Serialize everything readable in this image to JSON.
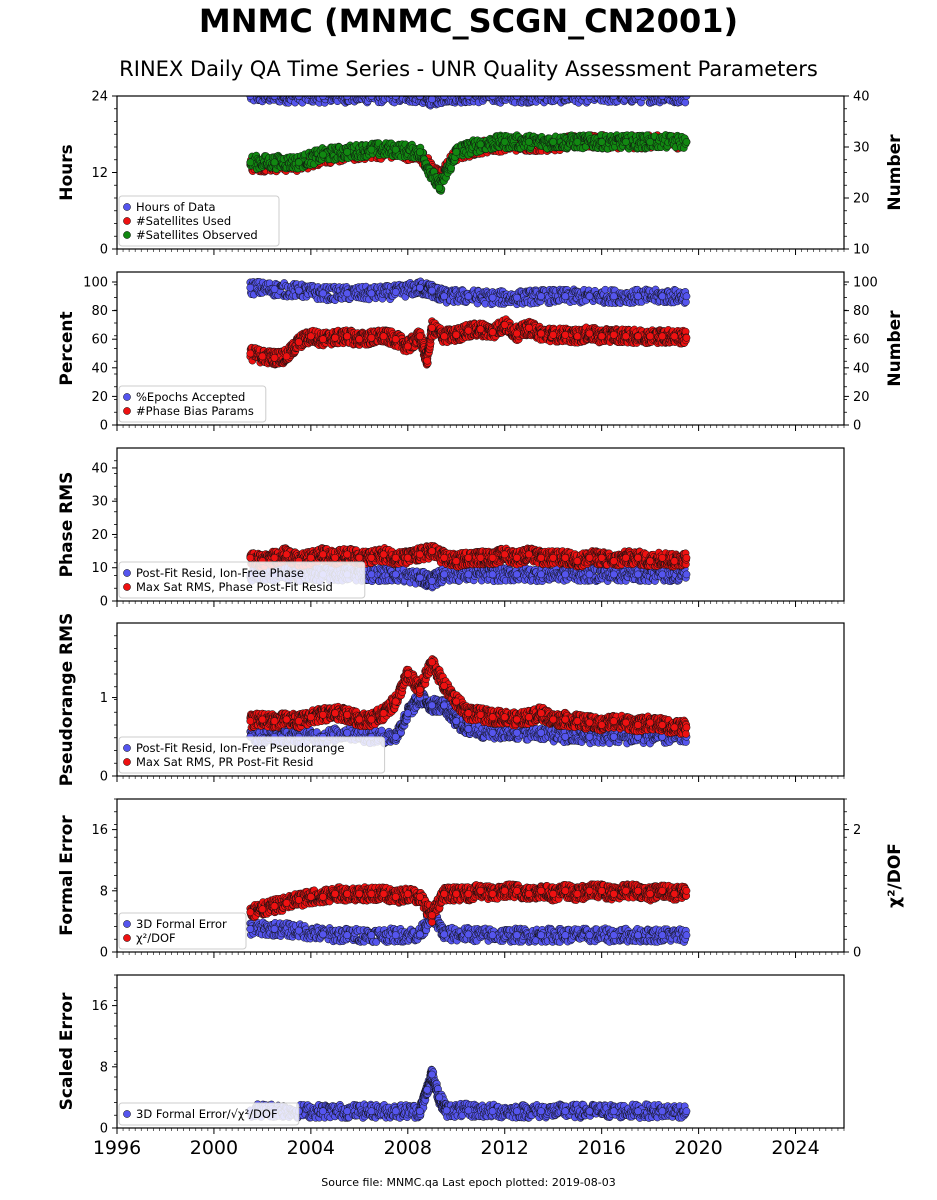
{
  "header": {
    "title": "MNMC (MNMC_SCGN_CN2001)",
    "subtitle": "RINEX Daily QA Time Series - UNR Quality Assessment Parameters"
  },
  "footer": {
    "text": "Source file: MNMC.qa Last epoch plotted: 2019-08-03"
  },
  "colors": {
    "blue": "#5555ee",
    "red": "#ee1111",
    "green": "#118811",
    "edge": "#111111"
  },
  "chart_data": [
    {
      "type": "scatter",
      "ylabel": "Hours",
      "y2label": "Number",
      "ylim": [
        0,
        24
      ],
      "y2lim": [
        10,
        40
      ],
      "yticks": [
        "0",
        "12",
        "24"
      ],
      "y2ticks": [
        "10",
        "20",
        "30",
        "40"
      ],
      "xlim": [
        1996,
        2026
      ],
      "legend": [
        "Hours of Data",
        "#Satellites Used",
        "#Satellites Observed"
      ],
      "legend_loc": "lower-left",
      "series": [
        {
          "name": "Hours of Data",
          "color": "blue",
          "axis": "left",
          "x": [
            2001.5,
            2002.5,
            2003.5,
            2004.5,
            2005.5,
            2006.5,
            2007.5,
            2008.5,
            2009.0,
            2009.5,
            2010.5,
            2011.5,
            2012.5,
            2013.5,
            2014.5,
            2015.5,
            2016.5,
            2017.5,
            2018.5,
            2019.5
          ],
          "y": [
            24,
            24,
            24,
            24,
            24,
            24,
            24,
            24,
            23.5,
            24,
            24,
            24,
            24,
            24,
            24,
            24,
            24,
            24,
            24,
            24
          ]
        },
        {
          "name": "#Satellites Used",
          "color": "red",
          "axis": "right",
          "x": [
            2001.5,
            2002.5,
            2003.5,
            2004.5,
            2005.5,
            2006.5,
            2007.5,
            2008.5,
            2009.3,
            2010.0,
            2011.0,
            2012.0,
            2013.0,
            2014.0,
            2015.0,
            2016.0,
            2017.0,
            2018.0,
            2019.5
          ],
          "y": [
            26.5,
            26.5,
            26.5,
            28.0,
            28.5,
            29.0,
            29.0,
            28.5,
            24.0,
            28.5,
            30.0,
            30.5,
            30.5,
            30.5,
            31.0,
            31.0,
            31.0,
            31.0,
            31.0
          ]
        },
        {
          "name": "#Satellites Observed",
          "color": "green",
          "axis": "right",
          "x": [
            2001.5,
            2002.5,
            2003.5,
            2004.5,
            2005.5,
            2006.5,
            2007.5,
            2008.5,
            2009.3,
            2010.0,
            2011.0,
            2012.0,
            2013.0,
            2014.0,
            2015.0,
            2016.0,
            2017.0,
            2018.0,
            2019.5
          ],
          "y": [
            27.0,
            27.0,
            27.0,
            28.5,
            29.0,
            29.5,
            29.5,
            29.0,
            22.0,
            29.0,
            30.5,
            31.0,
            31.0,
            31.0,
            31.0,
            31.0,
            31.0,
            31.0,
            31.0
          ]
        }
      ]
    },
    {
      "type": "scatter",
      "ylabel": "Percent",
      "y2label": "Number",
      "ylim": [
        0,
        107
      ],
      "y2lim": [
        0,
        107
      ],
      "yticks": [
        "0",
        "20",
        "40",
        "60",
        "80",
        "100"
      ],
      "y2ticks": [
        "0",
        "20",
        "40",
        "60",
        "80",
        "100"
      ],
      "xlim": [
        1996,
        2026
      ],
      "legend": [
        "%Epochs Accepted",
        "#Phase Bias Params"
      ],
      "legend_loc": "lower-left",
      "series": [
        {
          "name": "%Epochs Accepted",
          "color": "blue",
          "axis": "left",
          "x": [
            2001.5,
            2002.5,
            2003.5,
            2004.5,
            2005.5,
            2006.5,
            2007.5,
            2008.5,
            2009.0,
            2009.5,
            2010.5,
            2011.5,
            2012.5,
            2013.5,
            2014.5,
            2015.5,
            2016.5,
            2017.5,
            2018.5,
            2019.5
          ],
          "y": [
            96,
            95,
            94,
            92,
            92,
            92,
            93,
            96,
            94,
            90,
            90,
            89,
            89,
            90,
            90,
            90,
            90,
            90,
            90,
            90
          ]
        },
        {
          "name": "#Phase Bias Params",
          "color": "red",
          "axis": "right",
          "x": [
            2001.5,
            2002.0,
            2002.5,
            2003.0,
            2003.5,
            2004.0,
            2004.5,
            2005.0,
            2005.5,
            2006.0,
            2006.5,
            2007.0,
            2007.5,
            2008.0,
            2008.5,
            2008.8,
            2009.0,
            2009.5,
            2010.0,
            2010.5,
            2011.0,
            2011.5,
            2012.0,
            2012.5,
            2013.0,
            2013.5,
            2014.0,
            2014.5,
            2015.0,
            2015.5,
            2016.0,
            2016.5,
            2017.0,
            2017.5,
            2018.0,
            2018.5,
            2019.0,
            2019.5
          ],
          "y": [
            50,
            48,
            47,
            48,
            58,
            62,
            60,
            61,
            62,
            60,
            61,
            62,
            60,
            55,
            62,
            45,
            68,
            62,
            63,
            66,
            67,
            65,
            70,
            64,
            68,
            64,
            63,
            63,
            62,
            64,
            62,
            63,
            62,
            62,
            62,
            62,
            62,
            61
          ]
        }
      ]
    },
    {
      "type": "scatter",
      "ylabel": "Phase RMS",
      "ylim": [
        0,
        46
      ],
      "yticks": [
        "0",
        "10",
        "20",
        "30",
        "40"
      ],
      "xlim": [
        1996,
        2026
      ],
      "legend": [
        "Post-Fit Resid, Ion-Free Phase",
        "Max Sat RMS, Phase Post-Fit Resid"
      ],
      "legend_loc": "lower-left",
      "series": [
        {
          "name": "Post-Fit Resid, Ion-Free Phase",
          "color": "blue",
          "x": [
            2001.5,
            2002.5,
            2003.5,
            2004.5,
            2005.5,
            2006.5,
            2007.5,
            2008.5,
            2009.0,
            2009.5,
            2010.5,
            2011.5,
            2012.5,
            2013.5,
            2014.5,
            2015.5,
            2016.5,
            2017.5,
            2018.5,
            2019.5
          ],
          "y": [
            8,
            8,
            8,
            8,
            8,
            8,
            8,
            7,
            6,
            8,
            8,
            8,
            8,
            8,
            8,
            8,
            8,
            8,
            8,
            8
          ]
        },
        {
          "name": "Max Sat RMS, Phase Post-Fit Resid",
          "color": "red",
          "x": [
            2001.5,
            2002.0,
            2002.5,
            2003.0,
            2003.5,
            2004.0,
            2004.5,
            2005.0,
            2005.5,
            2006.0,
            2006.5,
            2007.0,
            2007.5,
            2008.0,
            2008.5,
            2009.0,
            2009.5,
            2010.0,
            2010.5,
            2011.0,
            2011.5,
            2012.0,
            2012.5,
            2013.0,
            2013.5,
            2014.0,
            2014.5,
            2015.0,
            2015.5,
            2016.0,
            2016.5,
            2017.0,
            2017.5,
            2018.0,
            2018.5,
            2019.0,
            2019.5
          ],
          "y": [
            13,
            12,
            13,
            14,
            12,
            13,
            14,
            13,
            14,
            13,
            13,
            14,
            13,
            13,
            14,
            15,
            13,
            12,
            13,
            13,
            13,
            14,
            13,
            14,
            13,
            13,
            13,
            12,
            13,
            13,
            12,
            13,
            13,
            12,
            13,
            12,
            13
          ]
        }
      ]
    },
    {
      "type": "scatter",
      "ylabel": "Pseudorange RMS",
      "ylim": [
        0,
        1.95
      ],
      "yticks": [
        "0",
        "1"
      ],
      "xlim": [
        1996,
        2026
      ],
      "legend": [
        "Post-Fit Resid, Ion-Free Pseudorange",
        "Max Sat RMS, PR Post-Fit Resid"
      ],
      "legend_loc": "lower-left",
      "series": [
        {
          "name": "Post-Fit Resid, Ion-Free Pseudorange",
          "color": "blue",
          "x": [
            2001.5,
            2002.5,
            2003.5,
            2004.5,
            2005.5,
            2006.5,
            2007.5,
            2008.0,
            2008.5,
            2009.0,
            2009.5,
            2010.0,
            2010.5,
            2011.5,
            2012.5,
            2013.5,
            2014.5,
            2015.5,
            2016.5,
            2017.5,
            2018.5,
            2019.5
          ],
          "y": [
            0.5,
            0.5,
            0.5,
            0.5,
            0.55,
            0.5,
            0.5,
            0.8,
            1.0,
            0.9,
            0.9,
            0.7,
            0.6,
            0.55,
            0.55,
            0.55,
            0.5,
            0.5,
            0.5,
            0.5,
            0.5,
            0.5
          ]
        },
        {
          "name": "Max Sat RMS, PR Post-Fit Resid",
          "color": "red",
          "x": [
            2001.5,
            2002.0,
            2002.5,
            2003.0,
            2003.5,
            2004.0,
            2004.5,
            2005.0,
            2005.5,
            2006.0,
            2006.5,
            2007.0,
            2007.5,
            2008.0,
            2008.5,
            2009.0,
            2009.5,
            2010.0,
            2010.5,
            2011.0,
            2011.5,
            2012.0,
            2012.5,
            2013.0,
            2013.5,
            2014.0,
            2014.5,
            2015.0,
            2015.5,
            2016.0,
            2016.5,
            2017.0,
            2017.5,
            2018.0,
            2018.5,
            2019.0,
            2019.5
          ],
          "y": [
            0.7,
            0.72,
            0.7,
            0.72,
            0.7,
            0.75,
            0.78,
            0.8,
            0.78,
            0.72,
            0.72,
            0.8,
            0.95,
            1.3,
            1.1,
            1.45,
            1.15,
            0.95,
            0.8,
            0.78,
            0.75,
            0.75,
            0.72,
            0.75,
            0.8,
            0.72,
            0.72,
            0.7,
            0.68,
            0.65,
            0.7,
            0.68,
            0.65,
            0.68,
            0.65,
            0.62,
            0.62
          ]
        }
      ]
    },
    {
      "type": "scatter",
      "ylabel": "Formal Error",
      "y2label": "χ²/DOF",
      "ylim": [
        0,
        20
      ],
      "y2lim": [
        0,
        2.5
      ],
      "yticks": [
        "0",
        "8",
        "16"
      ],
      "y2ticks": [
        "0",
        "2"
      ],
      "xlim": [
        1996,
        2026
      ],
      "legend": [
        "3D Formal Error",
        "χ²/DOF"
      ],
      "legend_loc": "lower-left",
      "series": [
        {
          "name": "3D Formal Error",
          "color": "blue",
          "axis": "left",
          "x": [
            2001.5,
            2002.5,
            2003.5,
            2004.5,
            2005.5,
            2006.5,
            2007.5,
            2008.5,
            2009.0,
            2009.5,
            2010.5,
            2011.5,
            2012.5,
            2013.5,
            2014.5,
            2015.5,
            2016.5,
            2017.5,
            2018.5,
            2019.5
          ],
          "y": [
            3.0,
            3.0,
            2.8,
            2.3,
            2.2,
            2.2,
            2.2,
            2.3,
            5.0,
            2.3,
            2.3,
            2.2,
            2.2,
            2.2,
            2.2,
            2.2,
            2.2,
            2.2,
            2.2,
            2.2
          ]
        },
        {
          "name": "χ²/DOF",
          "color": "red",
          "axis": "right",
          "x": [
            2001.5,
            2002.0,
            2002.5,
            2003.0,
            2003.5,
            2004.0,
            2004.5,
            2005.0,
            2005.5,
            2006.0,
            2006.5,
            2007.0,
            2007.5,
            2008.0,
            2008.5,
            2009.0,
            2009.5,
            2010.0,
            2010.5,
            2011.0,
            2011.5,
            2012.0,
            2012.5,
            2013.0,
            2013.5,
            2014.0,
            2014.5,
            2015.0,
            2015.5,
            2016.0,
            2016.5,
            2017.0,
            2017.5,
            2018.0,
            2018.5,
            2019.0,
            2019.5
          ],
          "y": [
            0.65,
            0.7,
            0.75,
            0.8,
            0.85,
            0.9,
            0.9,
            0.95,
            0.95,
            0.95,
            0.95,
            0.95,
            0.9,
            0.95,
            0.9,
            0.6,
            0.95,
            0.95,
            0.95,
            1.0,
            0.95,
            1.0,
            1.0,
            0.95,
            1.0,
            0.95,
            1.0,
            0.95,
            1.0,
            1.0,
            0.95,
            1.0,
            1.0,
            0.95,
            1.0,
            0.95,
            1.0
          ]
        }
      ]
    },
    {
      "type": "scatter",
      "ylabel": "Scaled Error",
      "ylim": [
        0,
        20
      ],
      "yticks": [
        "0",
        "8",
        "16"
      ],
      "xtick_labels": [
        "1996",
        "2000",
        "2004",
        "2008",
        "2012",
        "2016",
        "2020",
        "2024"
      ],
      "xlim": [
        1996,
        2026
      ],
      "legend": [
        "3D Formal Error/√χ²/DOF"
      ],
      "legend_loc": "lower-left",
      "series": [
        {
          "name": "3D Formal Error/√χ²/DOF",
          "color": "blue",
          "x": [
            2001.5,
            2002.5,
            2003.5,
            2004.5,
            2005.5,
            2006.5,
            2007.5,
            2008.5,
            2008.8,
            2009.0,
            2009.3,
            2009.6,
            2010.5,
            2011.5,
            2012.5,
            2013.5,
            2014.5,
            2015.5,
            2016.5,
            2017.5,
            2018.5,
            2019.5
          ],
          "y": [
            2.3,
            2.3,
            2.2,
            2.2,
            2.2,
            2.2,
            2.2,
            2.2,
            5.0,
            7.0,
            4.0,
            2.3,
            2.3,
            2.2,
            2.2,
            2.2,
            2.2,
            2.2,
            2.2,
            2.2,
            2.2,
            2.2
          ]
        }
      ]
    }
  ]
}
